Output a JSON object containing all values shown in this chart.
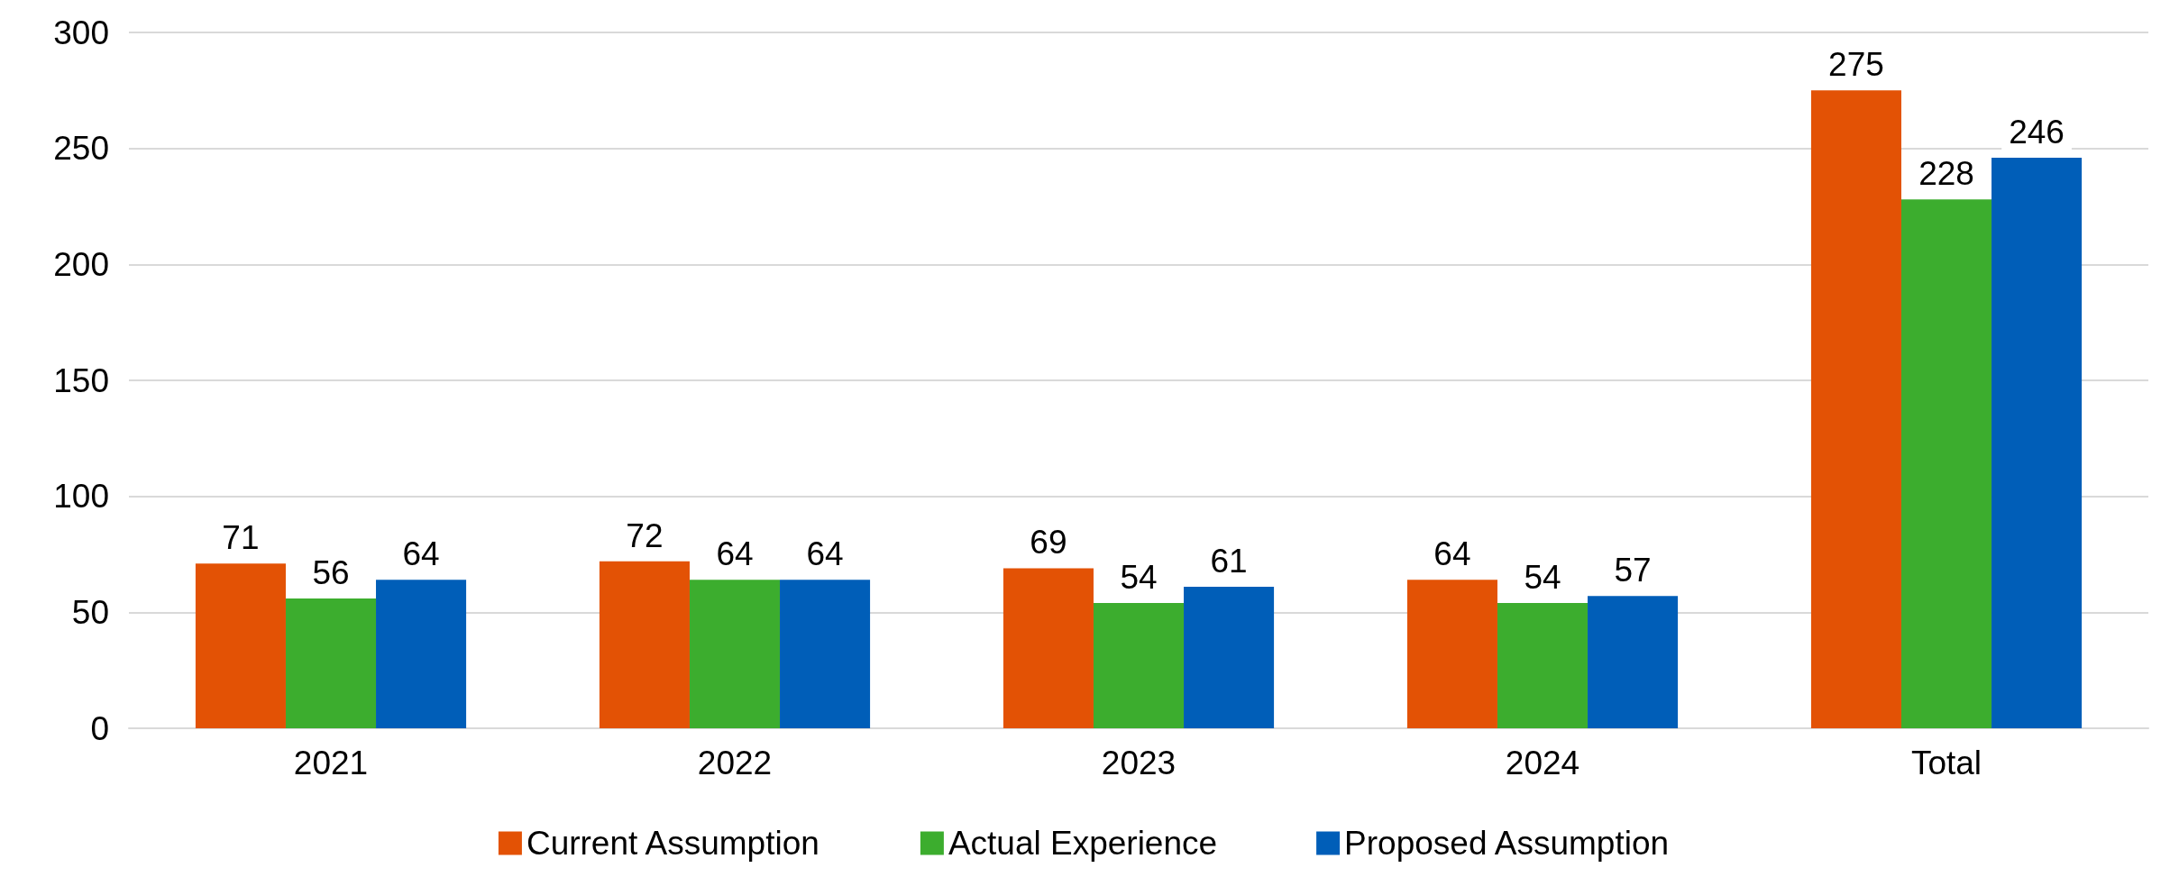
{
  "chart_data": {
    "type": "bar",
    "categories": [
      "2021",
      "2022",
      "2023",
      "2024",
      "Total"
    ],
    "series": [
      {
        "name": "Current Assumption",
        "color": "#e35205",
        "values": [
          71,
          72,
          69,
          64,
          275
        ]
      },
      {
        "name": "Actual Experience",
        "color": "#3cad2e",
        "values": [
          56,
          64,
          54,
          54,
          228
        ]
      },
      {
        "name": "Proposed Assumption",
        "color": "#005eb8",
        "values": [
          64,
          64,
          61,
          57,
          246
        ]
      }
    ],
    "ylim": [
      0,
      300
    ],
    "yticks": [
      0,
      50,
      100,
      150,
      200,
      250,
      300
    ],
    "grid": "y",
    "legend": "bottom",
    "data_labels": true
  }
}
